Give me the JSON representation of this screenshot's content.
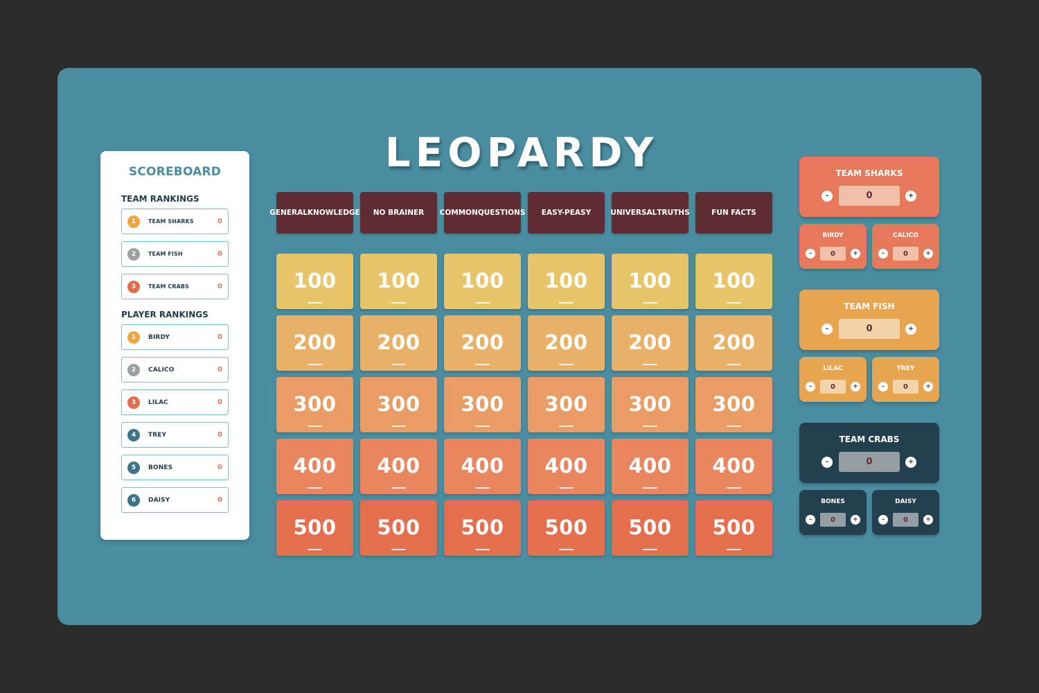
{
  "scoreboard": {
    "title": "SCOREBOARD",
    "team_rankings_label": "TEAM RANKINGS",
    "player_rankings_label": "PLAYER RANKINGS",
    "teams": [
      {
        "rank": "1",
        "name": "TEAM SHARKS",
        "score": "0",
        "badge_color": "#f0a542"
      },
      {
        "rank": "2",
        "name": "TEAM FISH",
        "score": "0",
        "badge_color": "#9aa0a4"
      },
      {
        "rank": "3",
        "name": "TEAM CRABS",
        "score": "0",
        "badge_color": "#e06e4c"
      }
    ],
    "players": [
      {
        "rank": "1",
        "name": "BIRDY",
        "score": "0",
        "badge_color": "#f0a542"
      },
      {
        "rank": "2",
        "name": "CALICO",
        "score": "0",
        "badge_color": "#9aa0a4"
      },
      {
        "rank": "3",
        "name": "LILAC",
        "score": "0",
        "badge_color": "#e06e4c"
      },
      {
        "rank": "4",
        "name": "TREY",
        "score": "0",
        "badge_color": "#3e7388"
      },
      {
        "rank": "5",
        "name": "BONES",
        "score": "0",
        "badge_color": "#3e7388"
      },
      {
        "rank": "6",
        "name": "DAISY",
        "score": "0",
        "badge_color": "#3e7388"
      }
    ]
  },
  "game_title": "LEOPARDY",
  "categories": [
    {
      "line1": "GENERAL",
      "line2": "KNOWLEDGE"
    },
    {
      "line1": "NO BRAINER",
      "line2": ""
    },
    {
      "line1": "COMMON",
      "line2": "QUESTIONS"
    },
    {
      "line1": "EASY-PEASY",
      "line2": ""
    },
    {
      "line1": "UNIVERSAL",
      "line2": "TRUTHS"
    },
    {
      "line1": "FUN FACTS",
      "line2": ""
    }
  ],
  "clue_rows": [
    {
      "value": "100",
      "color": "#e8c56a"
    },
    {
      "value": "200",
      "color": "#e9b167"
    },
    {
      "value": "300",
      "color": "#e99c63"
    },
    {
      "value": "400",
      "color": "#e8865f"
    },
    {
      "value": "500",
      "color": "#e56e4e"
    }
  ],
  "teams": [
    {
      "name": "TEAM SHARKS",
      "score": "0",
      "color": "#e6795a",
      "box_color": "#f2c0a8",
      "players": [
        {
          "name": "BIRDY",
          "score": "0"
        },
        {
          "name": "CALICO",
          "score": "0"
        }
      ]
    },
    {
      "name": "TEAM FISH",
      "score": "0",
      "color": "#e8a44f",
      "box_color": "#f3d3aa",
      "players": [
        {
          "name": "LILAC",
          "score": "0"
        },
        {
          "name": "TREY",
          "score": "0"
        }
      ]
    },
    {
      "name": "TEAM CRABS",
      "score": "0",
      "color": "#24404e",
      "box_color": "#959ea3",
      "players": [
        {
          "name": "BONES",
          "score": "0"
        },
        {
          "name": "DAISY",
          "score": "0"
        }
      ]
    }
  ],
  "controls": {
    "minus": "-",
    "plus": "+"
  }
}
